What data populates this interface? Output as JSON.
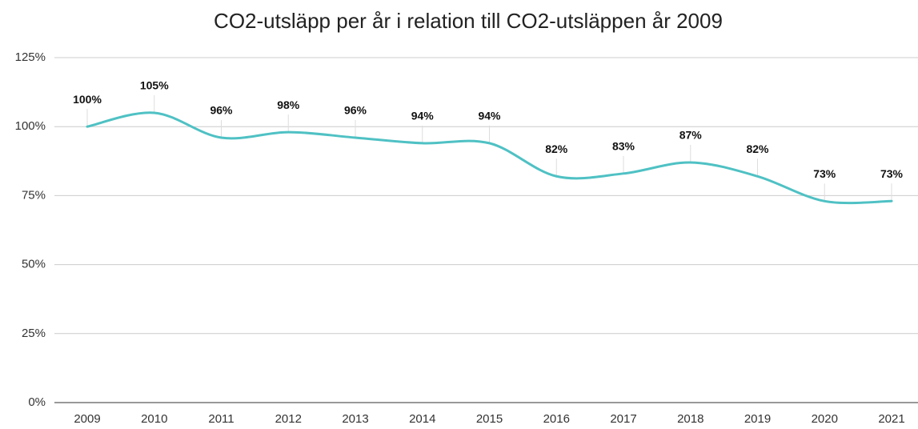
{
  "chart_data": {
    "type": "line",
    "title": "CO2-utsläpp per år i relation till CO2-utsläppen år 2009",
    "categories": [
      "2009",
      "2010",
      "2011",
      "2012",
      "2013",
      "2014",
      "2015",
      "2016",
      "2017",
      "2018",
      "2019",
      "2020",
      "2021"
    ],
    "series": [
      {
        "name": "CO2-utsläpp",
        "color": "#4fc1c4",
        "values": [
          100,
          105,
          96,
          98,
          96,
          94,
          94,
          82,
          83,
          87,
          82,
          73,
          73
        ],
        "value_labels": [
          "100%",
          "105%",
          "96%",
          "98%",
          "96%",
          "94%",
          "94%",
          "82%",
          "83%",
          "87%",
          "82%",
          "73%",
          "73%"
        ]
      }
    ],
    "ylim": [
      0,
      125
    ],
    "yticks": [
      {
        "value": 0,
        "label": "0%"
      },
      {
        "value": 25,
        "label": "25%"
      },
      {
        "value": 50,
        "label": "50%"
      },
      {
        "value": 75,
        "label": "75%"
      },
      {
        "value": 100,
        "label": "100%"
      },
      {
        "value": 125,
        "label": "125%"
      }
    ],
    "grid": true,
    "smooth": true
  }
}
